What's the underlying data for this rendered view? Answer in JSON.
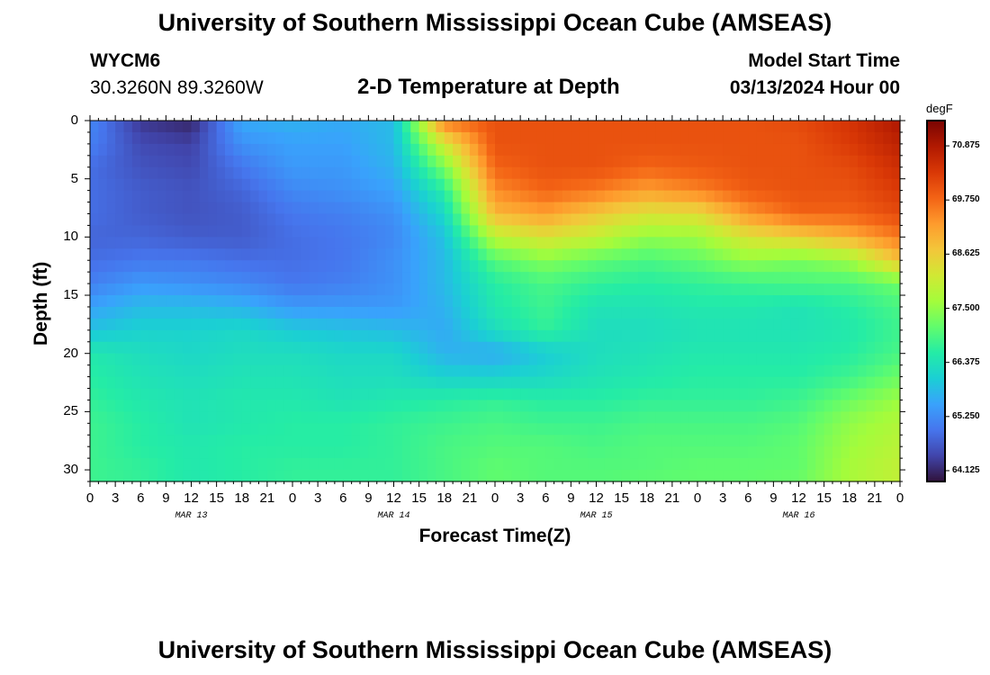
{
  "header": {
    "title": "University of Southern Mississippi Ocean Cube (AMSEAS)",
    "station": "WYCM6",
    "coordinates": "30.3260N  89.3260W",
    "subtitle": "2-D Temperature at Depth",
    "model_start_label": "Model Start Time",
    "model_start_value": "03/13/2024 Hour 00"
  },
  "footer": {
    "title": "University of Southern Mississippi Ocean Cube (AMSEAS)"
  },
  "chart_data": {
    "type": "heatmap",
    "title": "2-D Temperature at Depth",
    "xlabel": "Forecast Time(Z)",
    "ylabel": "Depth (ft)",
    "x_hours_range": [
      0,
      96
    ],
    "y_depth_range_ft": [
      0,
      31
    ],
    "x_tick_labels": [
      "0",
      "3",
      "6",
      "9",
      "12",
      "15",
      "18",
      "21",
      "0",
      "3",
      "6",
      "9",
      "12",
      "15",
      "18",
      "21",
      "0",
      "3",
      "6",
      "9",
      "12",
      "15",
      "18",
      "21",
      "0",
      "3",
      "6",
      "9",
      "12",
      "15",
      "18",
      "21",
      "0"
    ],
    "day_labels": [
      {
        "label": "MAR 13",
        "hour": 12
      },
      {
        "label": "MAR 14",
        "hour": 36
      },
      {
        "label": "MAR 15",
        "hour": 60
      },
      {
        "label": "MAR 16",
        "hour": 84
      }
    ],
    "y_ticks": [
      0,
      5,
      10,
      15,
      20,
      25,
      30
    ],
    "colorbar": {
      "units": "degF",
      "range": [
        63.9,
        71.4
      ],
      "labels": [
        "70.875",
        "69.750",
        "68.625",
        "67.500",
        "66.375",
        "65.250",
        "64.125"
      ],
      "label_values": [
        70.875,
        69.75,
        68.625,
        67.5,
        66.375,
        65.25,
        64.125
      ],
      "palette": [
        "#30123b",
        "#4145ab",
        "#4675ed",
        "#39a2fc",
        "#1bcfd4",
        "#24eca6",
        "#61fc6c",
        "#a4fc3b",
        "#d1e834",
        "#f3c63a",
        "#fe9b2d",
        "#f36315",
        "#d93806",
        "#b11901",
        "#7a0402"
      ]
    },
    "depth_rows_ft": [
      0,
      2,
      4,
      6,
      8,
      10,
      12,
      14,
      16,
      18,
      20,
      22,
      24,
      26,
      28,
      30,
      31
    ],
    "time_cols_hours": [
      0,
      6,
      12,
      18,
      24,
      30,
      36,
      42,
      48,
      54,
      60,
      66,
      72,
      78,
      84,
      90,
      96
    ],
    "temperature_degF": [
      [
        65.2,
        64.3,
        64.1,
        65.6,
        65.7,
        65.6,
        65.8,
        69.6,
        70.0,
        70.0,
        70.0,
        70.0,
        70.0,
        70.0,
        70.1,
        70.4,
        70.9
      ],
      [
        65.1,
        64.5,
        64.4,
        65.3,
        65.5,
        65.5,
        65.8,
        68.2,
        70.0,
        70.0,
        70.0,
        70.0,
        70.0,
        70.0,
        70.0,
        70.3,
        70.7
      ],
      [
        64.9,
        64.6,
        64.5,
        65.0,
        65.4,
        65.4,
        65.7,
        67.3,
        69.8,
        70.0,
        70.0,
        69.8,
        69.9,
        70.0,
        70.0,
        70.1,
        70.5
      ],
      [
        64.9,
        64.7,
        64.6,
        64.8,
        65.2,
        65.3,
        65.5,
        66.6,
        69.4,
        69.8,
        69.6,
        69.2,
        69.5,
        69.9,
        70.0,
        70.0,
        70.3
      ],
      [
        64.9,
        64.7,
        64.6,
        64.7,
        65.0,
        65.1,
        65.3,
        66.2,
        68.9,
        69.2,
        68.7,
        68.3,
        68.4,
        69.3,
        69.8,
        69.8,
        70.1
      ],
      [
        64.8,
        64.8,
        64.7,
        64.7,
        64.9,
        65.0,
        65.2,
        65.9,
        67.9,
        68.3,
        68.0,
        67.5,
        67.6,
        68.3,
        68.6,
        69.0,
        69.6
      ],
      [
        64.9,
        65.0,
        65.0,
        64.9,
        64.9,
        65.0,
        65.3,
        65.8,
        67.0,
        67.4,
        67.1,
        66.9,
        67.1,
        67.5,
        67.3,
        67.6,
        68.8
      ],
      [
        65.1,
        65.4,
        65.3,
        65.2,
        65.0,
        65.1,
        65.3,
        65.8,
        66.6,
        66.9,
        66.7,
        66.6,
        66.7,
        66.8,
        66.9,
        66.9,
        67.2
      ],
      [
        65.5,
        65.8,
        65.8,
        65.7,
        65.4,
        65.4,
        65.4,
        65.7,
        66.5,
        66.8,
        66.4,
        66.4,
        66.5,
        66.5,
        66.4,
        66.6,
        66.9
      ],
      [
        65.9,
        66.1,
        66.1,
        66.2,
        66.0,
        65.9,
        65.8,
        65.6,
        66.3,
        66.7,
        66.3,
        66.3,
        66.4,
        66.4,
        66.4,
        66.5,
        66.8
      ],
      [
        66.5,
        66.3,
        66.2,
        66.3,
        66.3,
        66.2,
        66.2,
        65.7,
        65.6,
        66.0,
        66.3,
        66.4,
        66.5,
        66.5,
        66.5,
        66.6,
        66.9
      ],
      [
        66.6,
        66.4,
        66.3,
        66.4,
        66.4,
        66.3,
        66.3,
        66.1,
        66.1,
        66.2,
        66.4,
        66.5,
        66.6,
        66.6,
        66.6,
        66.8,
        67.2
      ],
      [
        66.7,
        66.5,
        66.4,
        66.5,
        66.5,
        66.4,
        66.5,
        66.6,
        66.7,
        66.6,
        66.6,
        66.7,
        66.7,
        66.7,
        66.8,
        67.2,
        67.6
      ],
      [
        66.8,
        66.6,
        66.4,
        66.5,
        66.6,
        66.6,
        66.7,
        66.8,
        66.9,
        66.8,
        66.8,
        66.9,
        66.9,
        66.9,
        67.0,
        67.5,
        67.8
      ],
      [
        66.8,
        66.6,
        66.5,
        66.6,
        66.6,
        66.6,
        66.7,
        66.9,
        67.0,
        67.0,
        66.9,
        67.0,
        67.0,
        67.0,
        67.1,
        67.6,
        67.9
      ],
      [
        66.8,
        66.7,
        66.5,
        66.6,
        66.7,
        66.7,
        66.7,
        66.9,
        67.1,
        67.0,
        67.0,
        67.0,
        67.1,
        67.1,
        67.1,
        67.7,
        68.0
      ],
      [
        66.8,
        66.7,
        66.5,
        66.6,
        66.7,
        66.7,
        66.7,
        66.9,
        67.1,
        67.0,
        67.0,
        67.1,
        67.1,
        67.1,
        67.2,
        67.7,
        68.0
      ]
    ]
  }
}
